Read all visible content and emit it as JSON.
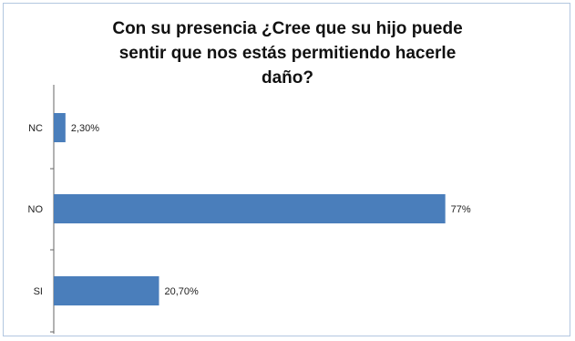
{
  "chart_data": {
    "type": "bar",
    "orientation": "horizontal",
    "title_lines": [
      "Con su presencia ¿Cree que su hijo puede",
      "sentir que nos estás permitiendo hacerle",
      "daño?"
    ],
    "categories": [
      "NC",
      "NO",
      "SI"
    ],
    "values": [
      2.3,
      77,
      20.7
    ],
    "value_labels": [
      "2,30%",
      "77%",
      "20,70%"
    ],
    "bar_color": "#4a7ebb",
    "xlim": [
      0,
      100
    ],
    "legend": "none",
    "grid": false
  }
}
